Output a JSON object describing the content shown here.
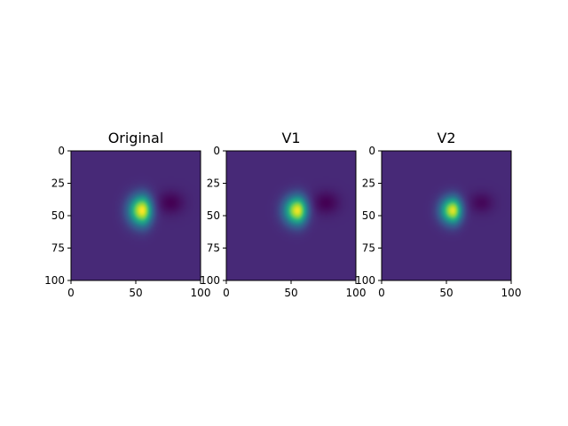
{
  "chart_data": [
    {
      "type": "heatmap",
      "title": "Original",
      "colormap": "viridis",
      "xlim": [
        0,
        100
      ],
      "ylim": [
        100,
        0
      ],
      "x_ticks": [
        "0",
        "50",
        "100"
      ],
      "y_ticks": [
        "0",
        "25",
        "50",
        "75",
        "100"
      ],
      "background_value": 0.12,
      "features": [
        {
          "kind": "peak",
          "x": 55,
          "y": 46,
          "sx": 7,
          "sy": 8,
          "amp": 0.88
        },
        {
          "kind": "trough",
          "x": 77,
          "y": 40,
          "sx": 7,
          "sy": 6,
          "amp": -0.12
        }
      ]
    },
    {
      "type": "heatmap",
      "title": "V1",
      "colormap": "viridis",
      "xlim": [
        0,
        100
      ],
      "ylim": [
        100,
        0
      ],
      "x_ticks": [
        "0",
        "50",
        "100"
      ],
      "y_ticks": [
        "0",
        "25",
        "50",
        "75",
        "100"
      ],
      "background_value": 0.12,
      "features": [
        {
          "kind": "peak",
          "x": 55,
          "y": 46,
          "sx": 7,
          "sy": 7.5,
          "amp": 0.86
        },
        {
          "kind": "trough",
          "x": 77,
          "y": 40,
          "sx": 7,
          "sy": 6,
          "amp": -0.12
        }
      ]
    },
    {
      "type": "heatmap",
      "title": "V2",
      "colormap": "viridis",
      "xlim": [
        0,
        100
      ],
      "ylim": [
        100,
        0
      ],
      "x_ticks": [
        "0",
        "50",
        "100"
      ],
      "y_ticks": [
        "0",
        "25",
        "50",
        "75",
        "100"
      ],
      "background_value": 0.12,
      "features": [
        {
          "kind": "peak",
          "x": 55,
          "y": 46,
          "sx": 6.5,
          "sy": 7,
          "amp": 0.84
        },
        {
          "kind": "trough",
          "x": 77,
          "y": 40,
          "sx": 6.5,
          "sy": 5.5,
          "amp": -0.1
        }
      ]
    }
  ]
}
